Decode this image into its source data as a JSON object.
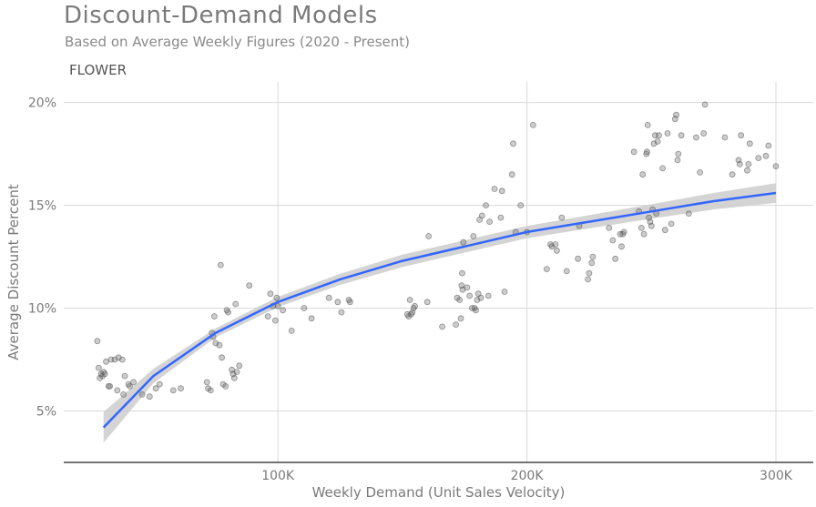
{
  "header": {
    "title": "Discount-Demand Models",
    "subtitle": "Based on Average Weekly Figures (2020 - Present)",
    "panel_label": "FLOWER"
  },
  "colors": {
    "fit_line": "#3366ff",
    "ribbon": "#cccccc",
    "points": "#555555",
    "grid": "#d9d9d9",
    "text": "#7a7a7a"
  },
  "chart_data": {
    "type": "scatter",
    "title": "Discount-Demand Models",
    "subtitle": "Based on Average Weekly Figures (2020 - Present)",
    "facet": "FLOWER",
    "xlabel": "Weekly Demand (Unit Sales Velocity)",
    "ylabel": "Average Discount Percent",
    "xlim": [
      14000,
      315000
    ],
    "ylim": [
      2.5,
      21
    ],
    "x_ticks": [
      100000,
      200000,
      300000
    ],
    "x_tick_labels": [
      "100K",
      "200K",
      "300K"
    ],
    "y_ticks": [
      5,
      10,
      15,
      20
    ],
    "y_tick_labels": [
      "5%",
      "10%",
      "15%",
      "20%"
    ],
    "grid": true,
    "fit": {
      "method": "log",
      "x": [
        30000,
        50000,
        75000,
        100000,
        125000,
        150000,
        175000,
        200000,
        225000,
        250000,
        275000,
        300000
      ],
      "y": [
        4.2,
        6.7,
        8.8,
        10.3,
        11.4,
        12.3,
        13.0,
        13.7,
        14.2,
        14.7,
        15.2,
        15.6
      ],
      "ci_halfwidth": [
        0.75,
        0.35,
        0.22,
        0.25,
        0.27,
        0.3,
        0.3,
        0.3,
        0.32,
        0.35,
        0.4,
        0.48
      ]
    },
    "points": [
      {
        "x": 27500,
        "y": 8.4
      },
      {
        "x": 28000,
        "y": 7.1
      },
      {
        "x": 28500,
        "y": 6.6
      },
      {
        "x": 29000,
        "y": 6.8
      },
      {
        "x": 29500,
        "y": 6.7
      },
      {
        "x": 30000,
        "y": 6.9
      },
      {
        "x": 30500,
        "y": 6.8
      },
      {
        "x": 31000,
        "y": 7.4
      },
      {
        "x": 32000,
        "y": 6.2
      },
      {
        "x": 32500,
        "y": 6.2
      },
      {
        "x": 33000,
        "y": 7.5
      },
      {
        "x": 34500,
        "y": 7.5
      },
      {
        "x": 35500,
        "y": 6.0
      },
      {
        "x": 36000,
        "y": 7.6
      },
      {
        "x": 37500,
        "y": 7.5
      },
      {
        "x": 38000,
        "y": 5.8
      },
      {
        "x": 38500,
        "y": 6.7
      },
      {
        "x": 40000,
        "y": 6.3
      },
      {
        "x": 40500,
        "y": 6.2
      },
      {
        "x": 42000,
        "y": 6.4
      },
      {
        "x": 45500,
        "y": 5.8
      },
      {
        "x": 48500,
        "y": 5.7
      },
      {
        "x": 51000,
        "y": 6.1
      },
      {
        "x": 52500,
        "y": 6.3
      },
      {
        "x": 58000,
        "y": 6.0
      },
      {
        "x": 61000,
        "y": 6.1
      },
      {
        "x": 71500,
        "y": 6.4
      },
      {
        "x": 72000,
        "y": 6.1
      },
      {
        "x": 73000,
        "y": 6.0
      },
      {
        "x": 73500,
        "y": 8.8
      },
      {
        "x": 74000,
        "y": 8.6
      },
      {
        "x": 74500,
        "y": 9.6
      },
      {
        "x": 75000,
        "y": 8.3
      },
      {
        "x": 76500,
        "y": 8.2
      },
      {
        "x": 77000,
        "y": 12.1
      },
      {
        "x": 77500,
        "y": 7.6
      },
      {
        "x": 78000,
        "y": 6.3
      },
      {
        "x": 79000,
        "y": 6.2
      },
      {
        "x": 79500,
        "y": 9.9
      },
      {
        "x": 80000,
        "y": 9.8
      },
      {
        "x": 81500,
        "y": 7.0
      },
      {
        "x": 82000,
        "y": 6.8
      },
      {
        "x": 82500,
        "y": 6.6
      },
      {
        "x": 83000,
        "y": 10.2
      },
      {
        "x": 83500,
        "y": 6.9
      },
      {
        "x": 84500,
        "y": 7.2
      },
      {
        "x": 88500,
        "y": 11.1
      },
      {
        "x": 96000,
        "y": 9.6
      },
      {
        "x": 97000,
        "y": 10.7
      },
      {
        "x": 98000,
        "y": 10.1
      },
      {
        "x": 99000,
        "y": 9.4
      },
      {
        "x": 99500,
        "y": 10.5
      },
      {
        "x": 100000,
        "y": 10.1
      },
      {
        "x": 102000,
        "y": 9.9
      },
      {
        "x": 105500,
        "y": 8.9
      },
      {
        "x": 110500,
        "y": 10.0
      },
      {
        "x": 113500,
        "y": 9.5
      },
      {
        "x": 120500,
        "y": 10.5
      },
      {
        "x": 124000,
        "y": 10.3
      },
      {
        "x": 125500,
        "y": 9.8
      },
      {
        "x": 128500,
        "y": 10.4
      },
      {
        "x": 129000,
        "y": 10.3
      },
      {
        "x": 152000,
        "y": 9.7
      },
      {
        "x": 152500,
        "y": 9.6
      },
      {
        "x": 153000,
        "y": 10.4
      },
      {
        "x": 153500,
        "y": 9.7
      },
      {
        "x": 154000,
        "y": 9.8
      },
      {
        "x": 154500,
        "y": 10.0
      },
      {
        "x": 155000,
        "y": 10.1
      },
      {
        "x": 160000,
        "y": 10.3
      },
      {
        "x": 160500,
        "y": 13.5
      },
      {
        "x": 166000,
        "y": 9.1
      },
      {
        "x": 171500,
        "y": 9.2
      },
      {
        "x": 172000,
        "y": 10.5
      },
      {
        "x": 173000,
        "y": 10.4
      },
      {
        "x": 173500,
        "y": 9.5
      },
      {
        "x": 173800,
        "y": 11.1
      },
      {
        "x": 174000,
        "y": 11.7
      },
      {
        "x": 174200,
        "y": 10.9
      },
      {
        "x": 174500,
        "y": 13.2
      },
      {
        "x": 176000,
        "y": 11.0
      },
      {
        "x": 177000,
        "y": 10.6
      },
      {
        "x": 178000,
        "y": 10.0
      },
      {
        "x": 178500,
        "y": 13.5
      },
      {
        "x": 179000,
        "y": 10.0
      },
      {
        "x": 179500,
        "y": 9.9
      },
      {
        "x": 180000,
        "y": 10.4
      },
      {
        "x": 180500,
        "y": 10.7
      },
      {
        "x": 181000,
        "y": 14.3
      },
      {
        "x": 181500,
        "y": 10.5
      },
      {
        "x": 182000,
        "y": 14.5
      },
      {
        "x": 183500,
        "y": 15.0
      },
      {
        "x": 184500,
        "y": 10.6
      },
      {
        "x": 185000,
        "y": 14.2
      },
      {
        "x": 187000,
        "y": 15.8
      },
      {
        "x": 189500,
        "y": 14.4
      },
      {
        "x": 190000,
        "y": 15.7
      },
      {
        "x": 191000,
        "y": 10.8
      },
      {
        "x": 194000,
        "y": 16.5
      },
      {
        "x": 194500,
        "y": 18.0
      },
      {
        "x": 195500,
        "y": 13.7
      },
      {
        "x": 197500,
        "y": 15.0
      },
      {
        "x": 200000,
        "y": 13.7
      },
      {
        "x": 202500,
        "y": 18.9
      },
      {
        "x": 208000,
        "y": 11.9
      },
      {
        "x": 209500,
        "y": 13.1
      },
      {
        "x": 210000,
        "y": 13.0
      },
      {
        "x": 211500,
        "y": 13.1
      },
      {
        "x": 212000,
        "y": 12.8
      },
      {
        "x": 214000,
        "y": 14.4
      },
      {
        "x": 216000,
        "y": 11.8
      },
      {
        "x": 220500,
        "y": 12.4
      },
      {
        "x": 221000,
        "y": 14.0
      },
      {
        "x": 224500,
        "y": 11.4
      },
      {
        "x": 225000,
        "y": 11.7
      },
      {
        "x": 226000,
        "y": 12.2
      },
      {
        "x": 226500,
        "y": 12.5
      },
      {
        "x": 233000,
        "y": 13.9
      },
      {
        "x": 234500,
        "y": 13.3
      },
      {
        "x": 235500,
        "y": 12.4
      },
      {
        "x": 237500,
        "y": 13.6
      },
      {
        "x": 238000,
        "y": 13.0
      },
      {
        "x": 238500,
        "y": 13.6
      },
      {
        "x": 239000,
        "y": 13.7
      },
      {
        "x": 243000,
        "y": 17.6
      },
      {
        "x": 245000,
        "y": 14.7
      },
      {
        "x": 246000,
        "y": 13.9
      },
      {
        "x": 246500,
        "y": 16.5
      },
      {
        "x": 247000,
        "y": 13.6
      },
      {
        "x": 248000,
        "y": 17.5
      },
      {
        "x": 248200,
        "y": 17.6
      },
      {
        "x": 248500,
        "y": 18.9
      },
      {
        "x": 249000,
        "y": 14.4
      },
      {
        "x": 249500,
        "y": 14.2
      },
      {
        "x": 250000,
        "y": 14.0
      },
      {
        "x": 250500,
        "y": 14.8
      },
      {
        "x": 251000,
        "y": 18.0
      },
      {
        "x": 251500,
        "y": 18.4
      },
      {
        "x": 252000,
        "y": 14.6
      },
      {
        "x": 252500,
        "y": 18.1
      },
      {
        "x": 253000,
        "y": 18.4
      },
      {
        "x": 254500,
        "y": 16.8
      },
      {
        "x": 255500,
        "y": 13.8
      },
      {
        "x": 256500,
        "y": 18.5
      },
      {
        "x": 258000,
        "y": 14.1
      },
      {
        "x": 259500,
        "y": 19.2
      },
      {
        "x": 260000,
        "y": 19.4
      },
      {
        "x": 260500,
        "y": 17.2
      },
      {
        "x": 260800,
        "y": 17.5
      },
      {
        "x": 262000,
        "y": 18.4
      },
      {
        "x": 265000,
        "y": 14.6
      },
      {
        "x": 268000,
        "y": 18.3
      },
      {
        "x": 269500,
        "y": 16.6
      },
      {
        "x": 271000,
        "y": 18.5
      },
      {
        "x": 271500,
        "y": 19.9
      },
      {
        "x": 279500,
        "y": 18.3
      },
      {
        "x": 282500,
        "y": 16.5
      },
      {
        "x": 285000,
        "y": 17.2
      },
      {
        "x": 285500,
        "y": 17.0
      },
      {
        "x": 286000,
        "y": 18.4
      },
      {
        "x": 288500,
        "y": 16.7
      },
      {
        "x": 289000,
        "y": 17.0
      },
      {
        "x": 289500,
        "y": 18.0
      },
      {
        "x": 293000,
        "y": 17.3
      },
      {
        "x": 296000,
        "y": 17.4
      },
      {
        "x": 297000,
        "y": 17.9
      },
      {
        "x": 300000,
        "y": 16.9
      }
    ]
  }
}
